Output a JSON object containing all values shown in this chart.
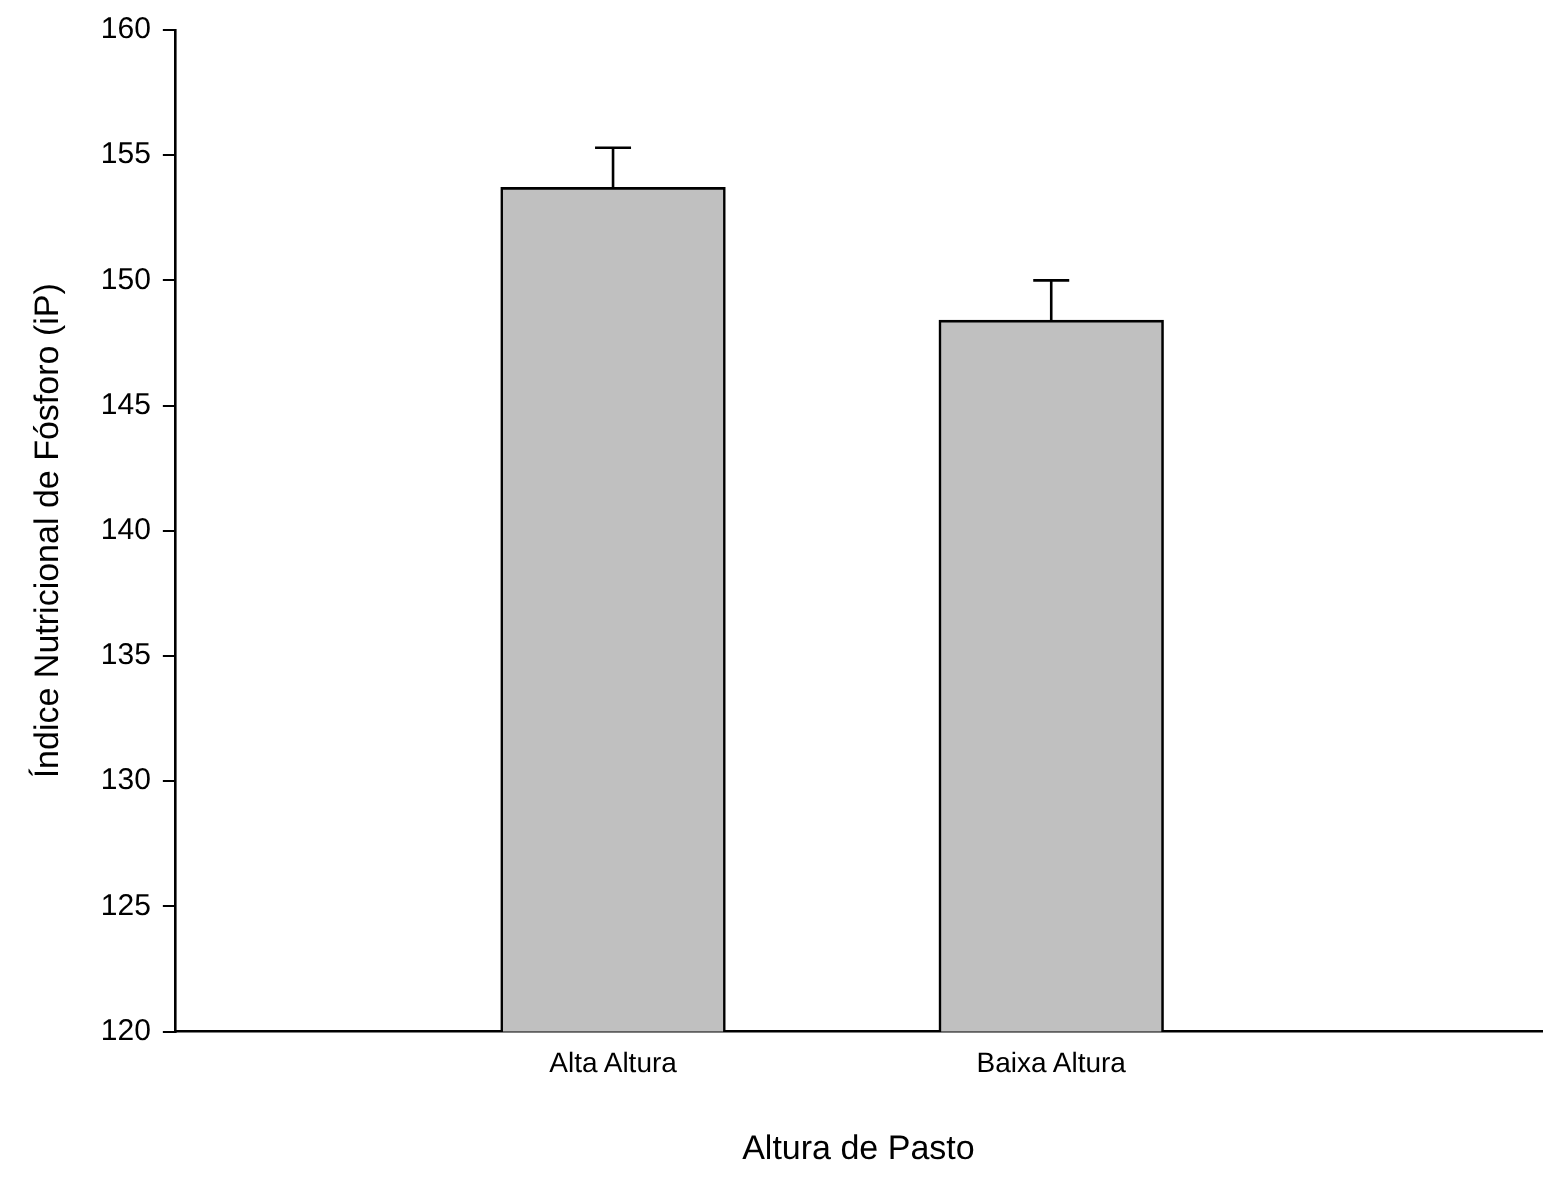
{
  "chart_data": {
    "type": "bar",
    "xlabel": "Altura de Pasto",
    "ylabel": "Índice Nutricional de Fósforo (iP)",
    "categories": [
      "Alta Altura",
      "Baixa Altura"
    ],
    "values": [
      153.7,
      148.4
    ],
    "errors": [
      [
        153.7,
        155.3
      ],
      [
        148.4,
        150.0
      ]
    ],
    "color": "#c0c0c0",
    "ylim": [
      120,
      160
    ],
    "yticks": [
      120,
      125,
      130,
      135,
      140,
      145,
      150,
      155,
      160
    ],
    "grid": false,
    "legend": false
  }
}
